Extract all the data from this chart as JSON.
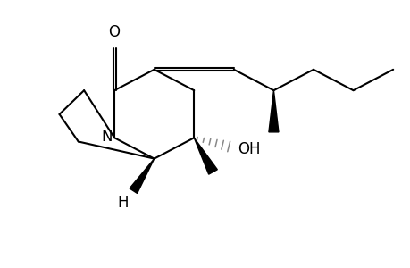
{
  "bg_color": "#ffffff",
  "line_color": "#000000",
  "figsize": [
    4.6,
    3.0
  ],
  "dpi": 100,
  "lw": 1.5,
  "xlim": [
    0.05,
    1.05
  ],
  "ylim": [
    0.28,
    0.98
  ]
}
